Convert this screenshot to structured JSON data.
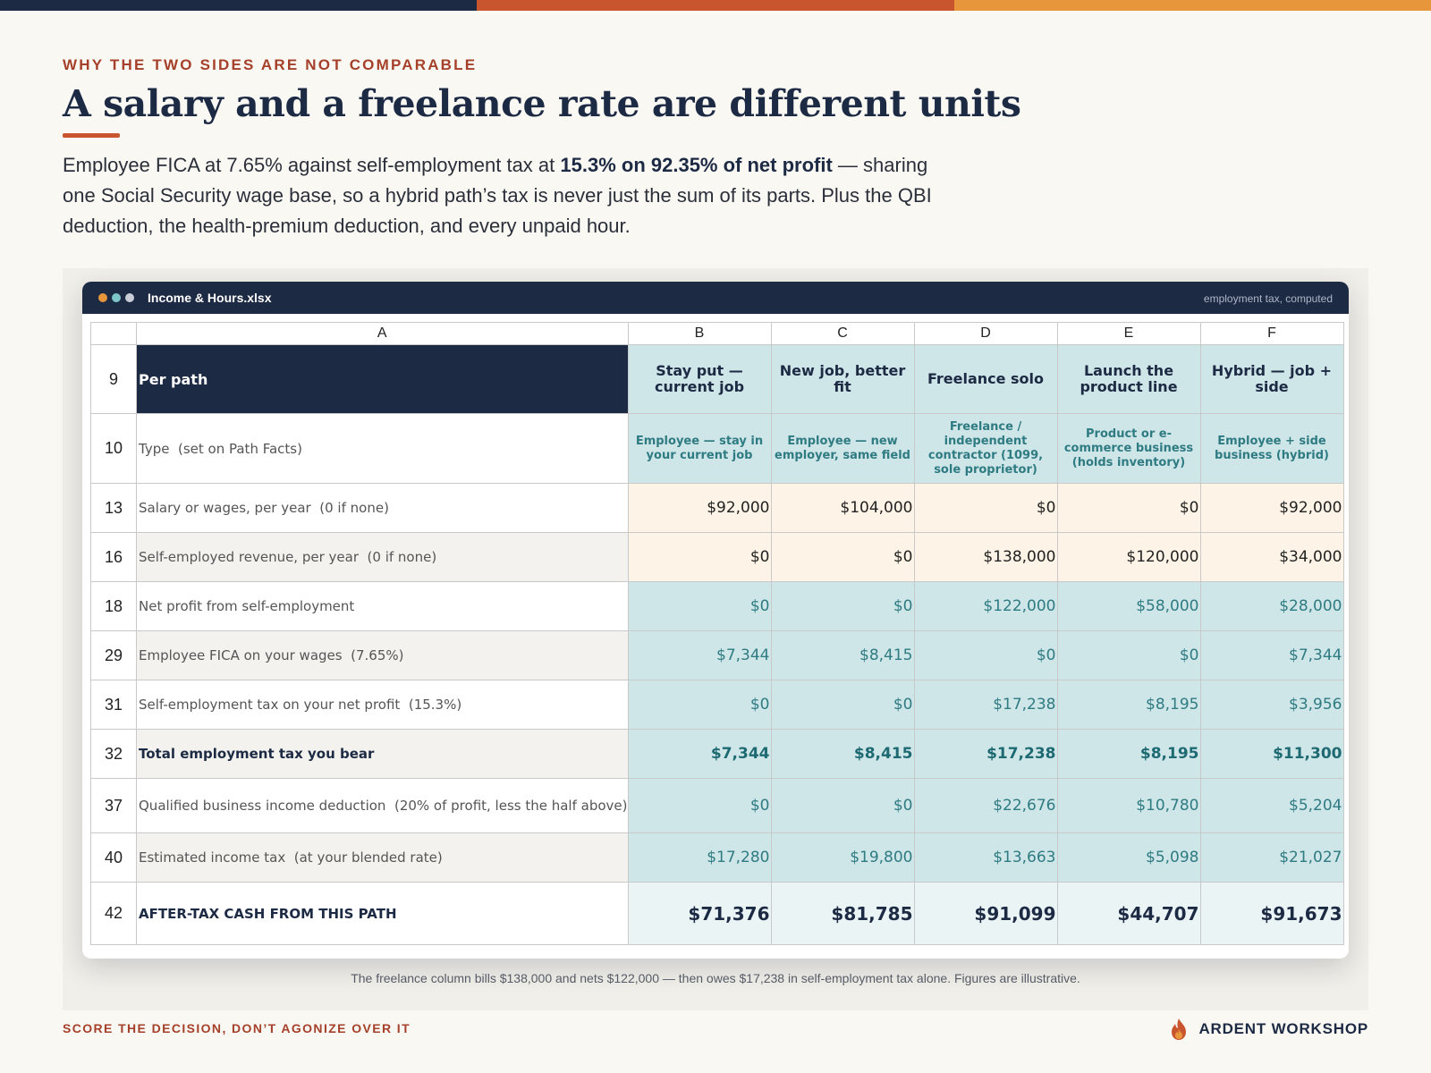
{
  "colors": {
    "navy": "#1d2a44",
    "rust": "#c9552e",
    "orange": "#e8963c",
    "teal_cell": "#cfe6e9",
    "input_cell": "#fdf3e6",
    "eyebrow": "#a5402a"
  },
  "eyebrow": "WHY THE TWO SIDES ARE NOT COMPARABLE",
  "title": "A salary and a freelance rate are different units",
  "lede": {
    "part1": "Employee FICA at 7.65% against self-employment tax at ",
    "bold": "15.3% on 92.35% of net profit",
    "part2": " — sharing one Social Security wage base, so a hybrid path’s tax is never just the sum of its parts. Plus the QBI deduction, the health-premium deduction, and every unpaid hour."
  },
  "window": {
    "title": "Income & Hours.xlsx",
    "note": "employment tax, computed",
    "dot_colors": [
      "#e8963c",
      "#7cc6c9",
      "#c8cdd8"
    ]
  },
  "sheet": {
    "column_letters": [
      "",
      "A",
      "B",
      "C",
      "D",
      "E",
      "F"
    ],
    "header": {
      "row": "9",
      "label": "Per path",
      "paths": [
        "Stay put — current job",
        "New job, better fit",
        "Freelance solo",
        "Launch the product line",
        "Hybrid — job + side"
      ]
    },
    "type_row": {
      "row": "10",
      "label": "Type",
      "hint": "(set on Path Facts)",
      "values": [
        "Employee — stay in your current job",
        "Employee — new employer, same field",
        "Freelance / independent contractor (1099, sole proprietor)",
        "Product or e-commerce business (holds inventory)",
        "Employee + side business (hybrid)"
      ]
    },
    "rows": [
      {
        "row": "13",
        "label": "Salary or wages, per year",
        "hint": "(0 if none)",
        "values": [
          "$92,000",
          "$104,000",
          "$0",
          "$0",
          "$92,000"
        ],
        "kind": "input"
      },
      {
        "row": "16",
        "label": "Self-employed revenue, per year",
        "hint": "(0 if none)",
        "values": [
          "$0",
          "$0",
          "$138,000",
          "$120,000",
          "$34,000"
        ],
        "kind": "input"
      },
      {
        "row": "18",
        "label": "Net profit from self-employment",
        "hint": "",
        "values": [
          "$0",
          "$0",
          "$122,000",
          "$58,000",
          "$28,000"
        ],
        "kind": "calc"
      },
      {
        "row": "29",
        "label": "Employee FICA on your wages",
        "hint": "(7.65%)",
        "values": [
          "$7,344",
          "$8,415",
          "$0",
          "$0",
          "$7,344"
        ],
        "kind": "calc"
      },
      {
        "row": "31",
        "label": "Self-employment tax on your net profit",
        "hint": "(15.3%)",
        "values": [
          "$0",
          "$0",
          "$17,238",
          "$8,195",
          "$3,956"
        ],
        "kind": "calc"
      },
      {
        "row": "32",
        "label": "Total employment tax you bear",
        "hint": "",
        "values": [
          "$7,344",
          "$8,415",
          "$17,238",
          "$8,195",
          "$11,300"
        ],
        "kind": "bold"
      },
      {
        "row": "37",
        "label": "Qualified business income deduction",
        "hint": "(20% of profit, less the half above)",
        "values": [
          "$0",
          "$0",
          "$22,676",
          "$10,780",
          "$5,204"
        ],
        "kind": "calc"
      },
      {
        "row": "40",
        "label": "Estimated income tax",
        "hint": "(at your blended rate)",
        "values": [
          "$17,280",
          "$19,800",
          "$13,663",
          "$5,098",
          "$21,027"
        ],
        "kind": "calc"
      },
      {
        "row": "42",
        "label": "AFTER-TAX CASH FROM THIS PATH",
        "hint": "",
        "values": [
          "$71,376",
          "$81,785",
          "$91,099",
          "$44,707",
          "$91,673"
        ],
        "kind": "total"
      }
    ]
  },
  "caption": "The freelance column bills $138,000 and nets $122,000 — then owes $17,238 in self-employment tax alone. Figures are illustrative.",
  "footer": {
    "tagline": "SCORE THE DECISION, DON’T AGONIZE OVER IT",
    "brand": "ARDENT WORKSHOP",
    "brand_icon": "flame-icon"
  }
}
